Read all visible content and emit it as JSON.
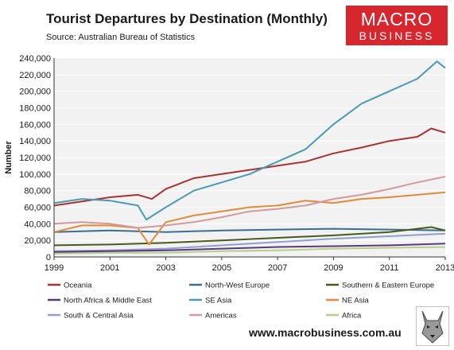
{
  "header": {
    "title": "Tourist Departures by Destination (Monthly)",
    "subtitle": "Source: Australian Bureau of Statistics"
  },
  "logo": {
    "line1": "MACRO",
    "line2": "BUSINESS"
  },
  "footer": {
    "url": "www.macrobusiness.com.au"
  },
  "chart_data": {
    "type": "line",
    "title": "Tourist Departures by Destination (Monthly)",
    "ylabel": "Number",
    "xlabel": "",
    "xlim": [
      1999,
      2013
    ],
    "ylim": [
      0,
      240000
    ],
    "x_ticks": [
      1999,
      2001,
      2003,
      2005,
      2007,
      2009,
      2011,
      2013
    ],
    "y_ticks": [
      0,
      20000,
      40000,
      60000,
      80000,
      100000,
      120000,
      140000,
      160000,
      180000,
      200000,
      220000,
      240000
    ],
    "y_tick_labels": [
      "0",
      "20,000",
      "40,000",
      "60,000",
      "80,000",
      "100,000",
      "120,000",
      "140,000",
      "160,000",
      "180,000",
      "200,000",
      "220,000",
      "240,000"
    ],
    "grid": "horizontal",
    "plot_background": "#f2f2f2",
    "legend_position": "bottom",
    "series": [
      {
        "name": "Oceania",
        "color": "#a83232",
        "points": [
          [
            1999,
            62000
          ],
          [
            2000,
            67000
          ],
          [
            2001,
            72000
          ],
          [
            2002,
            75000
          ],
          [
            2002.5,
            70000
          ],
          [
            2003,
            82000
          ],
          [
            2004,
            95000
          ],
          [
            2005,
            100000
          ],
          [
            2006,
            105000
          ],
          [
            2007,
            110000
          ],
          [
            2008,
            115000
          ],
          [
            2009,
            125000
          ],
          [
            2010,
            132000
          ],
          [
            2011,
            140000
          ],
          [
            2012,
            145000
          ],
          [
            2012.5,
            155000
          ],
          [
            2013,
            150000
          ]
        ]
      },
      {
        "name": "North-West Europe",
        "color": "#3b6f8f",
        "points": [
          [
            1999,
            30000
          ],
          [
            2001,
            32000
          ],
          [
            2003,
            30000
          ],
          [
            2005,
            32000
          ],
          [
            2007,
            33000
          ],
          [
            2009,
            34000
          ],
          [
            2011,
            33000
          ],
          [
            2013,
            32000
          ]
        ]
      },
      {
        "name": "Southern & Eastern Europe",
        "color": "#4a5a1e",
        "points": [
          [
            1999,
            14000
          ],
          [
            2001,
            15000
          ],
          [
            2003,
            17000
          ],
          [
            2005,
            20000
          ],
          [
            2007,
            23000
          ],
          [
            2009,
            26000
          ],
          [
            2011,
            30000
          ],
          [
            2012.5,
            36000
          ],
          [
            2013,
            32000
          ]
        ]
      },
      {
        "name": "North Africa & Middle East",
        "color": "#5a3a7a",
        "points": [
          [
            1999,
            6000
          ],
          [
            2001,
            7000
          ],
          [
            2003,
            8000
          ],
          [
            2005,
            10000
          ],
          [
            2007,
            12000
          ],
          [
            2009,
            13000
          ],
          [
            2011,
            14000
          ],
          [
            2013,
            16000
          ]
        ]
      },
      {
        "name": "SE Asia",
        "color": "#4a9ab5",
        "points": [
          [
            1999,
            65000
          ],
          [
            2000,
            70000
          ],
          [
            2001,
            68000
          ],
          [
            2002,
            62000
          ],
          [
            2002.3,
            45000
          ],
          [
            2003,
            60000
          ],
          [
            2004,
            80000
          ],
          [
            2005,
            90000
          ],
          [
            2006,
            100000
          ],
          [
            2007,
            115000
          ],
          [
            2008,
            130000
          ],
          [
            2009,
            160000
          ],
          [
            2010,
            185000
          ],
          [
            2011,
            200000
          ],
          [
            2012,
            215000
          ],
          [
            2012.7,
            236000
          ],
          [
            2013,
            228000
          ]
        ]
      },
      {
        "name": "NE Asia",
        "color": "#e08a3a",
        "points": [
          [
            1999,
            30000
          ],
          [
            2000,
            38000
          ],
          [
            2001,
            38000
          ],
          [
            2002,
            35000
          ],
          [
            2002.4,
            15000
          ],
          [
            2003,
            42000
          ],
          [
            2004,
            50000
          ],
          [
            2005,
            55000
          ],
          [
            2006,
            60000
          ],
          [
            2007,
            62000
          ],
          [
            2008,
            68000
          ],
          [
            2009,
            65000
          ],
          [
            2010,
            70000
          ],
          [
            2011,
            72000
          ],
          [
            2012,
            75000
          ],
          [
            2013,
            78000
          ]
        ]
      },
      {
        "name": "South & Central Asia",
        "color": "#8f9fd0",
        "points": [
          [
            1999,
            7000
          ],
          [
            2001,
            8000
          ],
          [
            2003,
            10000
          ],
          [
            2005,
            14000
          ],
          [
            2007,
            18000
          ],
          [
            2009,
            22000
          ],
          [
            2011,
            25000
          ],
          [
            2013,
            28000
          ]
        ]
      },
      {
        "name": "Americas",
        "color": "#d69898",
        "points": [
          [
            1999,
            40000
          ],
          [
            2000,
            42000
          ],
          [
            2001,
            40000
          ],
          [
            2002,
            35000
          ],
          [
            2003,
            38000
          ],
          [
            2004,
            42000
          ],
          [
            2005,
            48000
          ],
          [
            2006,
            55000
          ],
          [
            2007,
            58000
          ],
          [
            2008,
            62000
          ],
          [
            2009,
            70000
          ],
          [
            2010,
            75000
          ],
          [
            2011,
            82000
          ],
          [
            2012,
            90000
          ],
          [
            2013,
            97000
          ]
        ]
      },
      {
        "name": "Africa",
        "color": "#b5cf8a",
        "points": [
          [
            1999,
            4000
          ],
          [
            2001,
            5000
          ],
          [
            2003,
            5000
          ],
          [
            2005,
            7000
          ],
          [
            2007,
            8000
          ],
          [
            2009,
            10000
          ],
          [
            2011,
            11000
          ],
          [
            2013,
            12000
          ]
        ]
      }
    ]
  }
}
